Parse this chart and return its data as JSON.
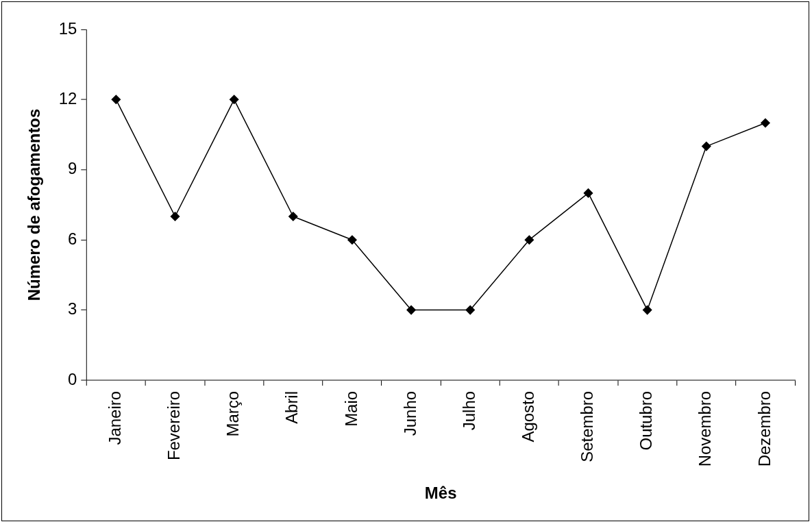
{
  "chart_data": {
    "type": "line",
    "xlabel": "Mês",
    "ylabel": "Número de afogamentos",
    "categories": [
      "Janeiro",
      "Fevereiro",
      "Março",
      "Abril",
      "Maio",
      "Junho",
      "Julho",
      "Agosto",
      "Setembro",
      "Outubro",
      "Novembro",
      "Dezembro"
    ],
    "series": [
      {
        "color": "#000000",
        "values": [
          12,
          7,
          12,
          7,
          6,
          3,
          3,
          6,
          8,
          3,
          10,
          11
        ]
      }
    ],
    "ylim": [
      0,
      15
    ],
    "yticks": [
      0,
      3,
      6,
      9,
      12,
      15
    ],
    "marker": "diamond",
    "line_style": "solid"
  }
}
